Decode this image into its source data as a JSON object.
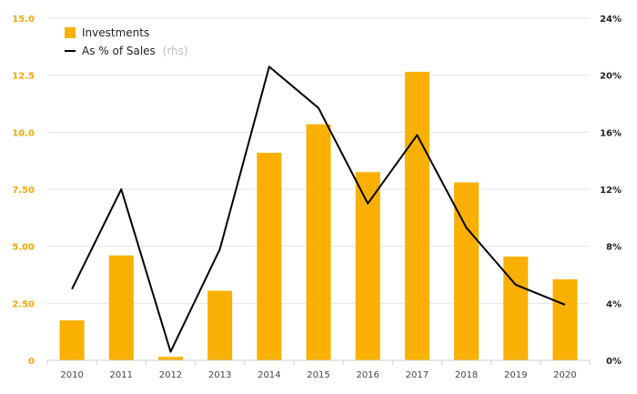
{
  "chart_data": {
    "type": "bar",
    "categories": [
      "2010",
      "2011",
      "2012",
      "2013",
      "2014",
      "2015",
      "2016",
      "2017",
      "2018",
      "2019",
      "2020"
    ],
    "series": [
      {
        "name": "Investments",
        "type": "bar",
        "axis": "left",
        "color": "#f9b000",
        "values": [
          1.75,
          4.6,
          0.15,
          3.05,
          9.1,
          10.35,
          8.25,
          12.65,
          7.8,
          4.55,
          3.55
        ]
      },
      {
        "name": "As % of Sales",
        "type": "line",
        "axis": "right",
        "color": "#000000",
        "values": [
          5.0,
          12.0,
          0.6,
          7.8,
          20.6,
          17.7,
          11.0,
          15.8,
          9.3,
          5.3,
          3.9
        ]
      }
    ],
    "legend": {
      "line_note": "(rhs)",
      "placement": "top-left"
    },
    "y_left": {
      "ylim": [
        0,
        15
      ],
      "ticks": [
        "0",
        "2.50",
        "5.00",
        "7.50",
        "10.0",
        "12.5",
        "15.0"
      ],
      "color": "#f5a800"
    },
    "y_right": {
      "ylim": [
        0,
        24
      ],
      "ticks": [
        "0%",
        "4%",
        "8%",
        "12%",
        "16%",
        "20%",
        "24%"
      ]
    },
    "grid": true
  }
}
